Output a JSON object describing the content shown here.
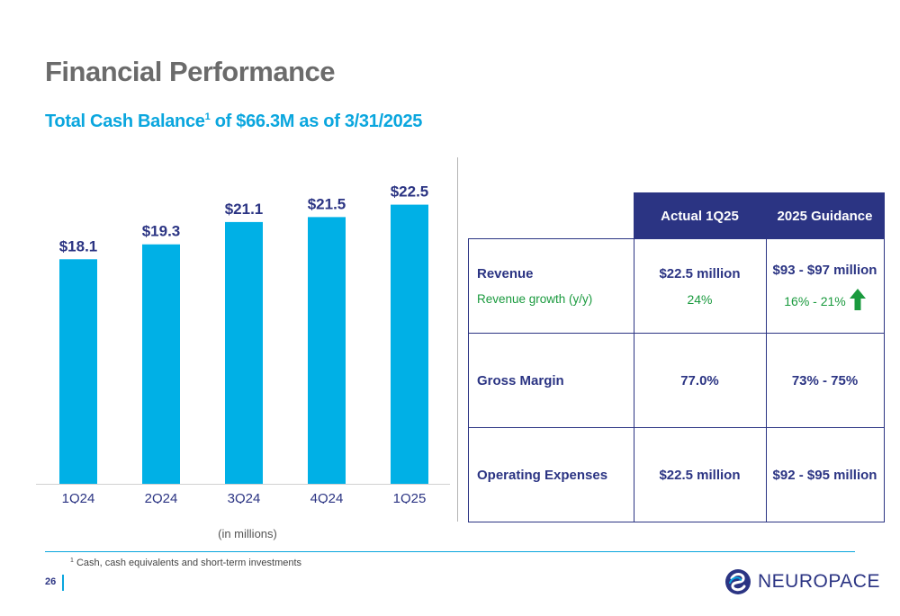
{
  "page": {
    "title": "Financial Performance",
    "subtitle_pre": "Total Cash Balance",
    "subtitle_sup": "1",
    "subtitle_post": " of $66.3M as of 3/31/2025",
    "page_number": "26",
    "footnote_mark": "1",
    "footnote": "Cash, cash equivalents and short-term investments",
    "brand": "NEUROPACE"
  },
  "chart_data": {
    "type": "bar",
    "categories": [
      "1Q24",
      "2Q24",
      "3Q24",
      "4Q24",
      "1Q25"
    ],
    "values": [
      18.1,
      19.3,
      21.1,
      21.5,
      22.5
    ],
    "data_labels": [
      "$18.1",
      "$19.3",
      "$21.1",
      "$21.5",
      "$22.5"
    ],
    "title": "",
    "xlabel": "(in millions)",
    "ylabel": "",
    "ylim": [
      0,
      24.5
    ],
    "bar_color": "#00b0e6",
    "label_color": "#2b3483",
    "grid": false
  },
  "table": {
    "headers": [
      "Actual 1Q25",
      "2025 Guidance"
    ],
    "rows": [
      {
        "label": "Revenue",
        "sublabel": "Revenue growth (y/y)",
        "actual": "$22.5 million",
        "actual_sub": "24%",
        "guidance": "$93 - $97 million",
        "guidance_sub": "16% - 21%"
      },
      {
        "label": "Gross Margin",
        "actual": "77.0%",
        "guidance": "73% - 75%"
      },
      {
        "label": "Operating Expenses",
        "actual": "$22.5 million",
        "guidance": "$92 - $95 million"
      }
    ],
    "accent_color": "#2b3483",
    "growth_color": "#1a9a3e",
    "icon": "up-arrow-icon"
  }
}
